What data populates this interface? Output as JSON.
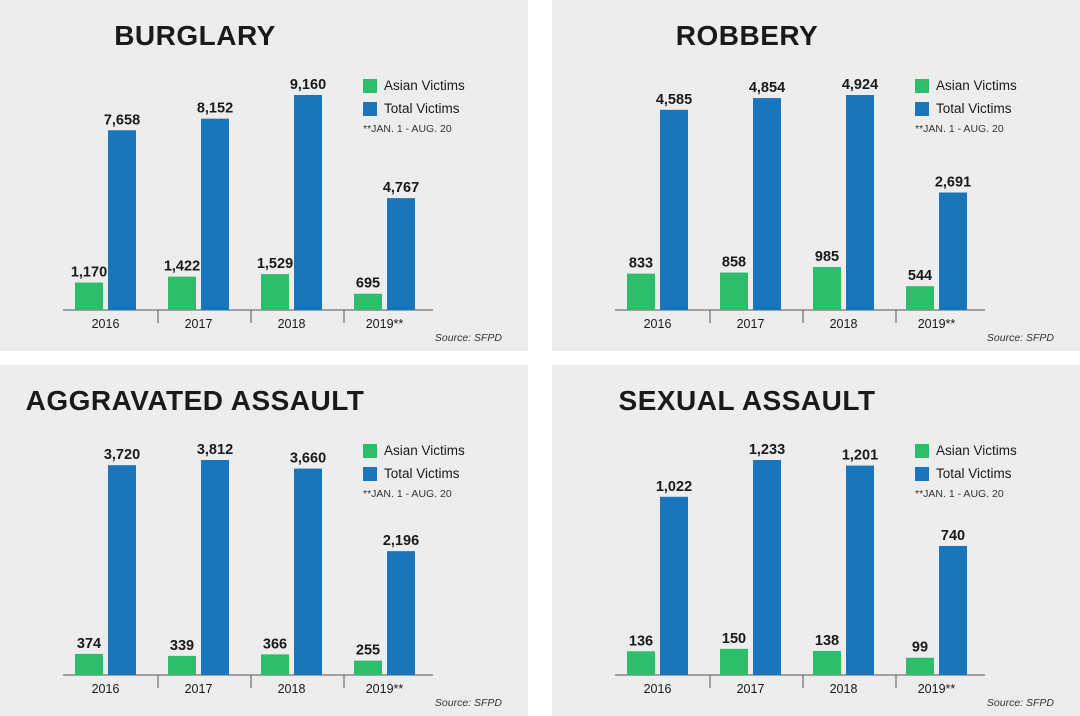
{
  "colors": {
    "asian": "#2ebd6b",
    "total": "#1a76bb",
    "panel_bg": "#ededee",
    "axis": "#555555"
  },
  "legend": {
    "asian_label": "Asian Victims",
    "total_label": "Total Victims",
    "note": "**JAN. 1 - AUG. 20"
  },
  "source": "Source: SFPD",
  "chart_data": [
    {
      "type": "bar",
      "title": "BURGLARY",
      "categories": [
        "2016",
        "2017",
        "2018",
        "2019**"
      ],
      "series": [
        {
          "name": "Asian Victims",
          "values": [
            1170,
            1422,
            1529,
            695
          ],
          "labels": [
            "1,170",
            "1,422",
            "1,529",
            "695"
          ]
        },
        {
          "name": "Total Victims",
          "values": [
            7658,
            8152,
            9160,
            4767
          ],
          "labels": [
            "7,658",
            "8,152",
            "9,160",
            "4,767"
          ]
        }
      ],
      "ylim": [
        0,
        9160
      ]
    },
    {
      "type": "bar",
      "title": "ROBBERY",
      "categories": [
        "2016",
        "2017",
        "2018",
        "2019**"
      ],
      "series": [
        {
          "name": "Asian Victims",
          "values": [
            833,
            858,
            985,
            544
          ],
          "labels": [
            "833",
            "858",
            "985",
            "544"
          ]
        },
        {
          "name": "Total Victims",
          "values": [
            4585,
            4854,
            4924,
            2691
          ],
          "labels": [
            "4,585",
            "4,854",
            "4,924",
            "2,691"
          ]
        }
      ],
      "ylim": [
        0,
        4924
      ]
    },
    {
      "type": "bar",
      "title": "AGGRAVATED ASSAULT",
      "categories": [
        "2016",
        "2017",
        "2018",
        "2019**"
      ],
      "series": [
        {
          "name": "Asian Victims",
          "values": [
            374,
            339,
            366,
            255
          ],
          "labels": [
            "374",
            "339",
            "366",
            "255"
          ]
        },
        {
          "name": "Total Victims",
          "values": [
            3720,
            3812,
            3660,
            2196
          ],
          "labels": [
            "3,720",
            "3,812",
            "3,660",
            "2,196"
          ]
        }
      ],
      "ylim": [
        0,
        3812
      ]
    },
    {
      "type": "bar",
      "title": "SEXUAL ASSAULT",
      "categories": [
        "2016",
        "2017",
        "2018",
        "2019**"
      ],
      "series": [
        {
          "name": "Asian Victims",
          "values": [
            136,
            150,
            138,
            99
          ],
          "labels": [
            "136",
            "150",
            "138",
            "99"
          ]
        },
        {
          "name": "Total Victims",
          "values": [
            1022,
            1233,
            1201,
            740
          ],
          "labels": [
            "1,022",
            "1,233",
            "1,201",
            "740"
          ]
        }
      ],
      "ylim": [
        0,
        1233
      ]
    }
  ]
}
